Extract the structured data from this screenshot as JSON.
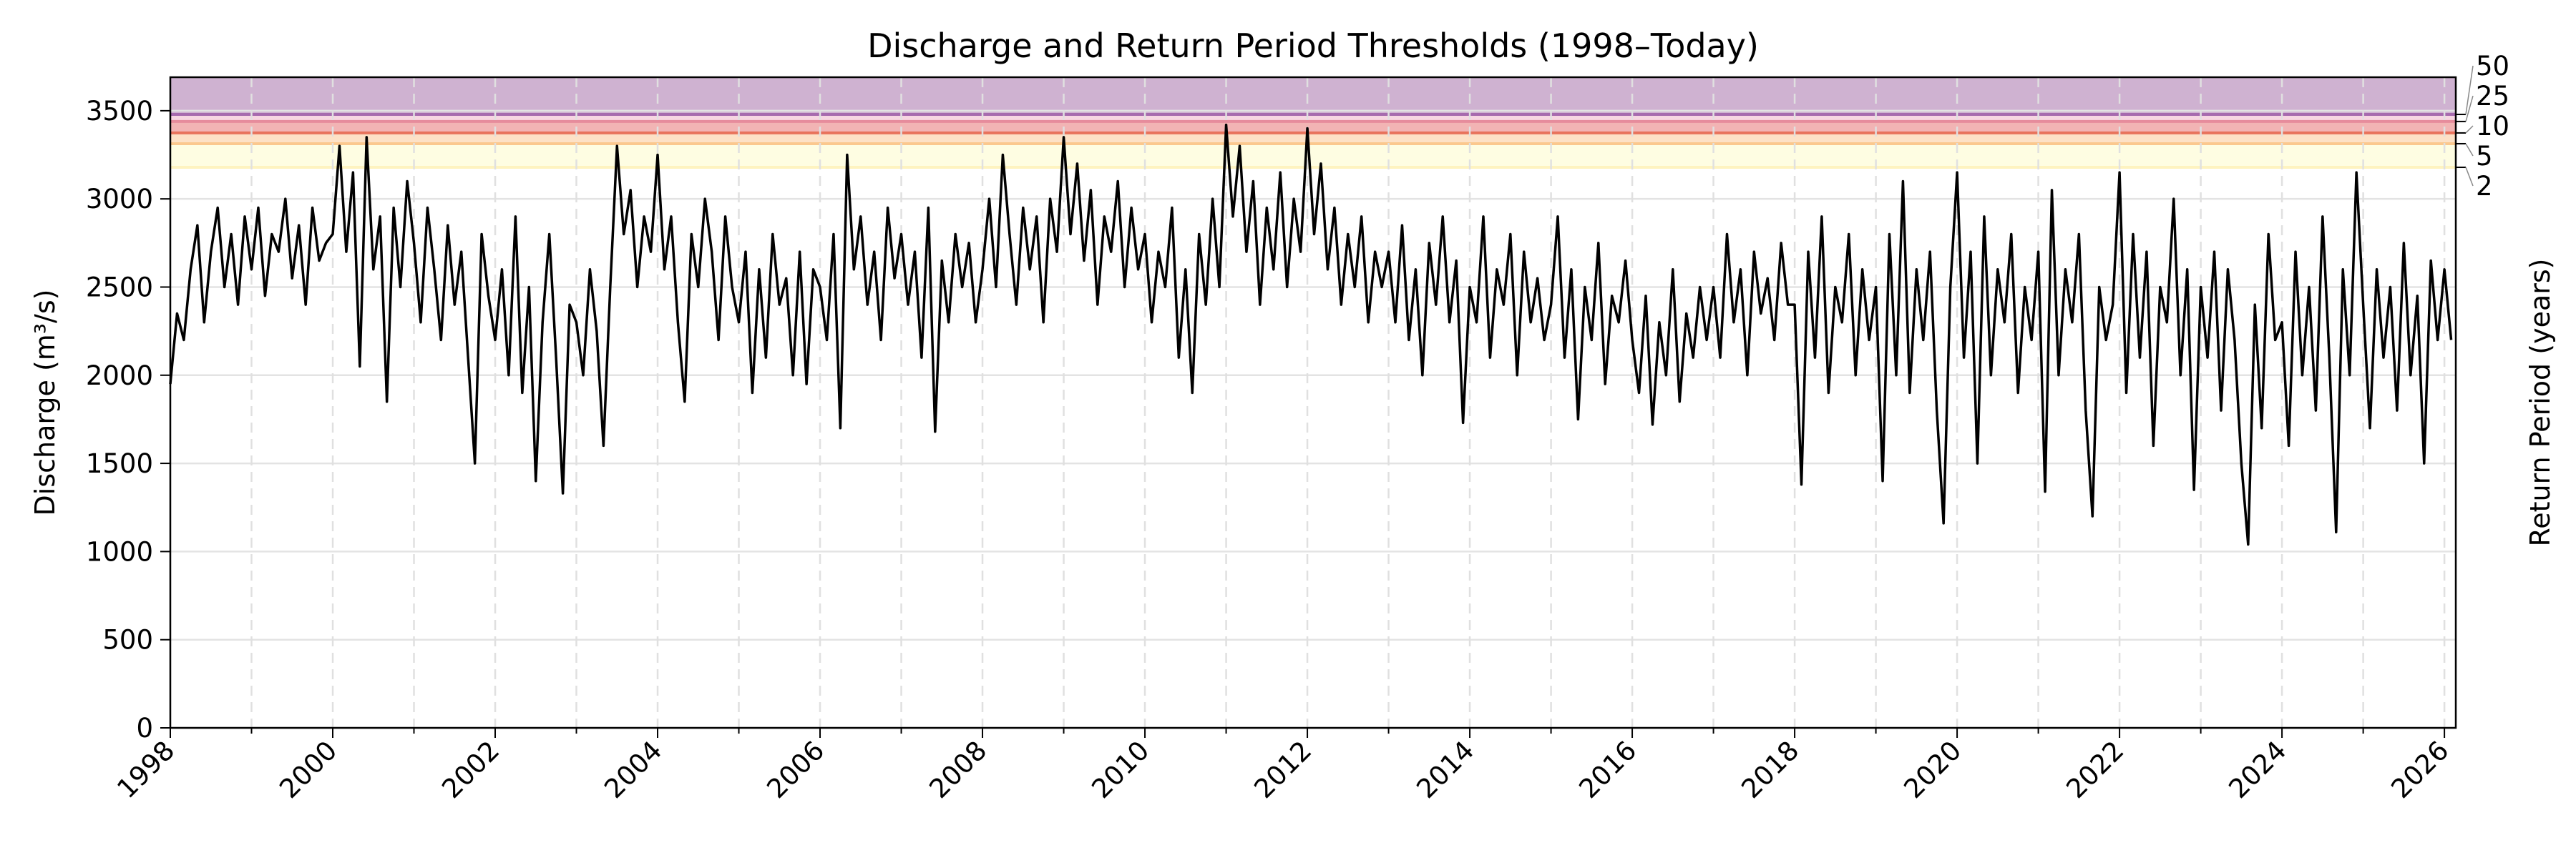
{
  "chart_data": {
    "type": "line",
    "title": "Discharge and Return Period Thresholds (1998–Today)",
    "ylabel": "Discharge (m³/s)",
    "ylabel_right": "Return Period (years)",
    "xlim": [
      1998,
      2026.14
    ],
    "ylim": [
      0,
      3690
    ],
    "yticks": [
      0,
      500,
      1000,
      1500,
      2000,
      2500,
      3000,
      3500
    ],
    "xticks": [
      "1998",
      "2000",
      "2002",
      "2004",
      "2006",
      "2008",
      "2010",
      "2012",
      "2014",
      "2016",
      "2018",
      "2020",
      "2022",
      "2024",
      "2026"
    ],
    "x_minor_ticks": "yearly",
    "grid": {
      "horizontal": "solid",
      "vertical": "dashed yearly"
    },
    "line_color": "#000000",
    "return_periods": [
      {
        "label": "2",
        "value": 3179,
        "band_color": "#fefde2",
        "line_color": "#fef3c0"
      },
      {
        "label": "5",
        "value": 3313,
        "band_color": "#fde1c6",
        "line_color": "#fbc88e"
      },
      {
        "label": "10",
        "value": 3374,
        "band_color": "#f2b4b4",
        "line_color": "#e8735c"
      },
      {
        "label": "25",
        "value": 3439,
        "band_color": "#f7d6e2",
        "line_color": "#e68c9c"
      },
      {
        "label": "50",
        "value": 3479,
        "band_color": "#cfb2d1",
        "line_color": "#a66aae"
      }
    ],
    "series_monthly": {
      "1998": [
        1950,
        2350,
        2200,
        2600,
        2850,
        2300,
        2700,
        2950,
        2500,
        2800,
        2400,
        2900
      ],
      "1999": [
        2600,
        2950,
        2450,
        2800,
        2700,
        3000,
        2550,
        2850,
        2400,
        2950,
        2650,
        2750
      ],
      "2000": [
        2800,
        3300,
        2700,
        3150,
        2050,
        3350,
        2600,
        2900,
        1850,
        2950,
        2500,
        3100
      ],
      "2001": [
        2750,
        2300,
        2950,
        2600,
        2200,
        2850,
        2400,
        2700,
        2100,
        1500,
        2800,
        2450
      ],
      "2002": [
        2200,
        2600,
        2000,
        2900,
        1900,
        2500,
        1400,
        2300,
        2800,
        2100,
        1330,
        2400
      ],
      "2003": [
        2300,
        2000,
        2600,
        2250,
        1600,
        2500,
        3300,
        2800,
        3050,
        2500,
        2900,
        2700
      ],
      "2004": [
        3250,
        2600,
        2900,
        2300,
        1850,
        2800,
        2500,
        3000,
        2700,
        2200,
        2900,
        2500
      ],
      "2005": [
        2300,
        2700,
        1900,
        2600,
        2100,
        2800,
        2400,
        2550,
        2000,
        2700,
        1950,
        2600
      ],
      "2006": [
        2500,
        2200,
        2800,
        1700,
        3250,
        2600,
        2900,
        2400,
        2700,
        2200,
        2950,
        2550
      ],
      "2007": [
        2800,
        2400,
        2700,
        2100,
        2950,
        1680,
        2650,
        2300,
        2800,
        2500,
        2750,
        2300
      ],
      "2008": [
        2600,
        3000,
        2500,
        3250,
        2800,
        2400,
        2950,
        2600,
        2900,
        2300,
        3000,
        2700
      ],
      "2009": [
        3350,
        2800,
        3200,
        2650,
        3050,
        2400,
        2900,
        2700,
        3100,
        2500,
        2950,
        2600
      ],
      "2010": [
        2800,
        2300,
        2700,
        2500,
        2950,
        2100,
        2600,
        1900,
        2800,
        2400,
        3000,
        2500
      ],
      "2011": [
        3420,
        2900,
        3300,
        2700,
        3100,
        2400,
        2950,
        2600,
        3150,
        2500,
        3000,
        2700
      ],
      "2012": [
        3400,
        2800,
        3200,
        2600,
        2950,
        2400,
        2800,
        2500,
        2900,
        2300,
        2700,
        2500
      ],
      "2013": [
        2700,
        2300,
        2850,
        2200,
        2600,
        2000,
        2750,
        2400,
        2900,
        2300,
        2650,
        1730
      ],
      "2014": [
        2500,
        2300,
        2900,
        2100,
        2600,
        2400,
        2800,
        2000,
        2700,
        2300,
        2550,
        2200
      ],
      "2015": [
        2400,
        2900,
        2100,
        2600,
        1750,
        2500,
        2200,
        2750,
        1950,
        2450,
        2300,
        2650
      ],
      "2016": [
        2200,
        1900,
        2450,
        1720,
        2300,
        2000,
        2600,
        1850,
        2350,
        2100,
        2500,
        2200
      ],
      "2017": [
        2500,
        2100,
        2800,
        2300,
        2600,
        2000,
        2700,
        2350,
        2550,
        2200,
        2750,
        2400
      ],
      "2018": [
        2400,
        1380,
        2700,
        2100,
        2900,
        1900,
        2500,
        2300,
        2800,
        2000,
        2600,
        2200
      ],
      "2019": [
        2500,
        1400,
        2800,
        2000,
        3100,
        1900,
        2600,
        2200,
        2700,
        1800,
        1160,
        2500
      ],
      "2020": [
        3150,
        2100,
        2700,
        1500,
        2900,
        2000,
        2600,
        2300,
        2800,
        1900,
        2500,
        2200
      ],
      "2021": [
        2700,
        1340,
        3050,
        2000,
        2600,
        2300,
        2800,
        1800,
        1200,
        2500,
        2200,
        2400
      ],
      "2022": [
        3150,
        1900,
        2800,
        2100,
        2700,
        1600,
        2500,
        2300,
        3000,
        2000,
        2600,
        1350
      ],
      "2023": [
        2500,
        2100,
        2700,
        1800,
        2600,
        2200,
        1500,
        1040,
        2400,
        1700,
        2800,
        2200
      ],
      "2024": [
        2300,
        1600,
        2700,
        2000,
        2500,
        1800,
        2900,
        2100,
        1110,
        2600,
        2000,
        3150
      ],
      "2025": [
        2400,
        1700,
        2600,
        2100,
        2500,
        1800,
        2750,
        2000,
        2450,
        1500,
        2650,
        2200
      ],
      "2026": [
        2600,
        2200
      ]
    }
  }
}
